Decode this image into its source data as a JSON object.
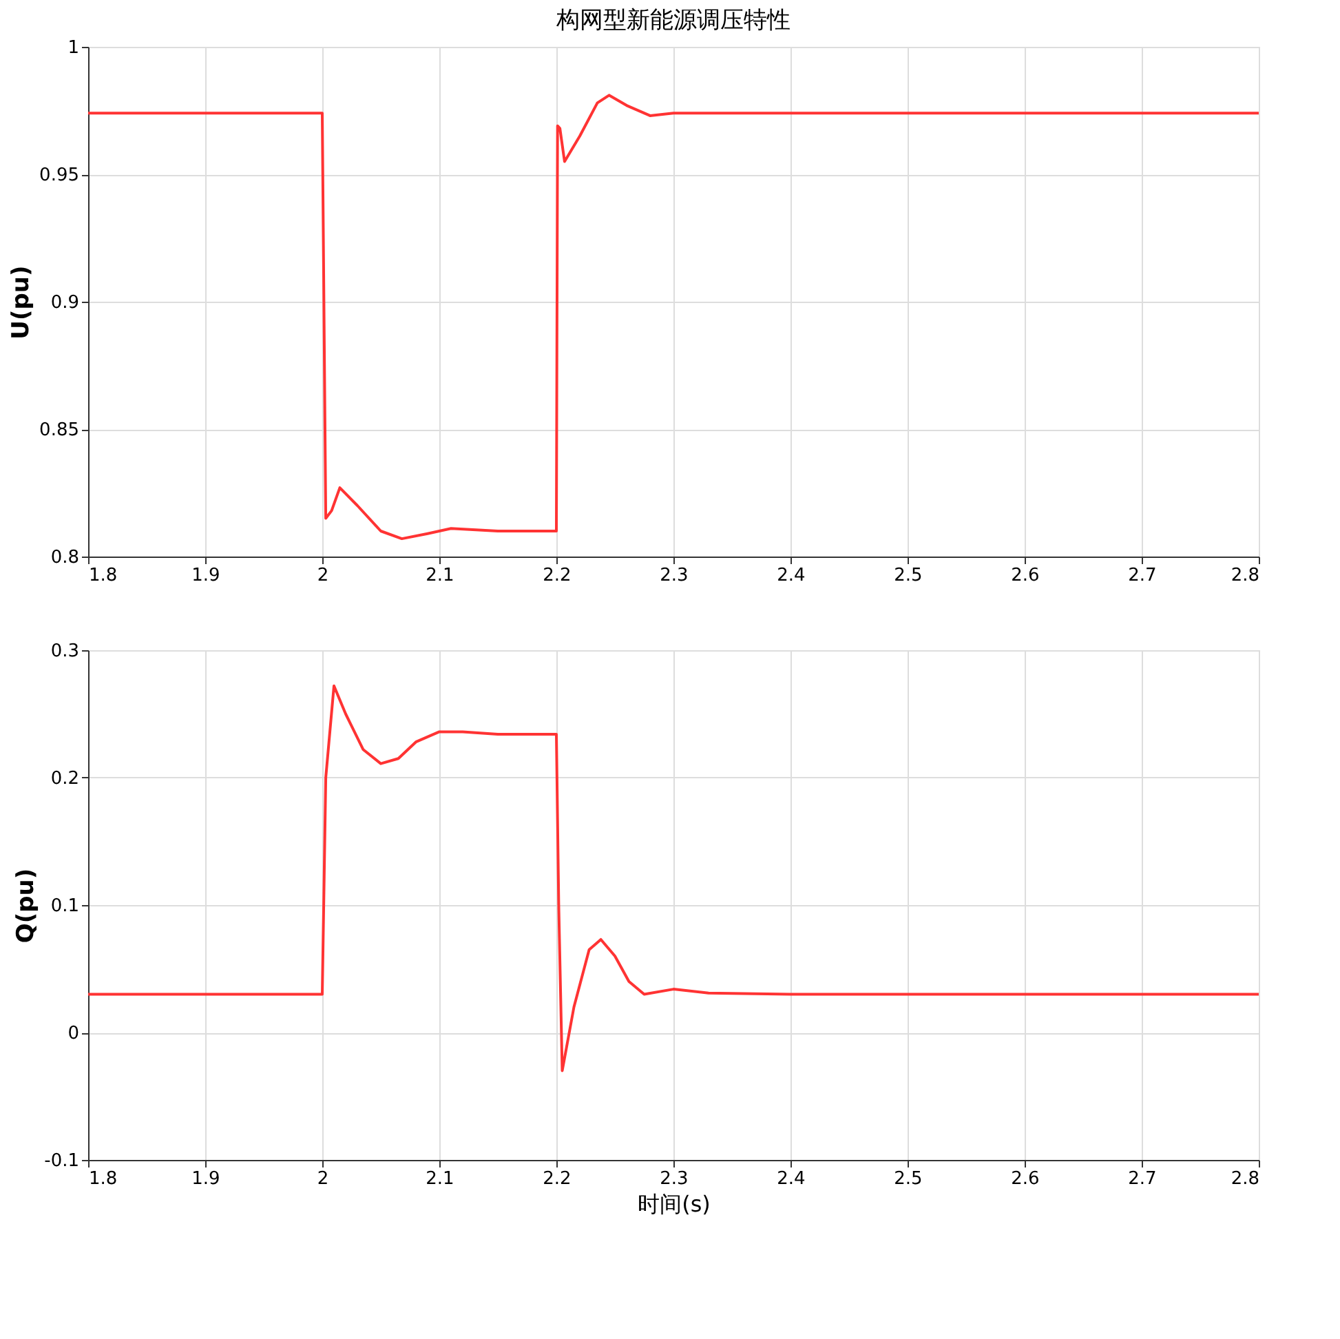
{
  "chart_data": [
    {
      "type": "line",
      "title": "构网型新能源调压特性",
      "ylabel": "U(pu)",
      "xlim": [
        1.8,
        2.8
      ],
      "xticks": [
        1.8,
        1.9,
        2,
        2.1,
        2.2,
        2.3,
        2.4,
        2.5,
        2.6,
        2.7,
        2.8
      ],
      "ylim": [
        0.8,
        1
      ],
      "yticks": [
        0.8,
        0.85,
        0.9,
        0.95,
        1
      ],
      "grid": true,
      "marker": "none",
      "line_style": "solid",
      "series": [
        {
          "color": "#ff3333",
          "x": [
            1.8,
            2.0,
            2.003,
            2.008,
            2.015,
            2.03,
            2.05,
            2.068,
            2.09,
            2.11,
            2.15,
            2.2,
            2.201,
            2.203,
            2.207,
            2.22,
            2.235,
            2.245,
            2.26,
            2.28,
            2.3,
            2.4,
            2.8
          ],
          "values": [
            0.974,
            0.974,
            0.815,
            0.818,
            0.827,
            0.82,
            0.81,
            0.807,
            0.809,
            0.811,
            0.81,
            0.81,
            0.969,
            0.968,
            0.955,
            0.965,
            0.978,
            0.981,
            0.977,
            0.973,
            0.974,
            0.974,
            0.974
          ]
        }
      ]
    },
    {
      "type": "line",
      "xlabel": "时间(s)",
      "ylabel": "Q(pu)",
      "xlim": [
        1.8,
        2.8
      ],
      "xticks": [
        1.8,
        1.9,
        2,
        2.1,
        2.2,
        2.3,
        2.4,
        2.5,
        2.6,
        2.7,
        2.8
      ],
      "ylim": [
        -0.1,
        0.3
      ],
      "yticks": [
        -0.1,
        0,
        0.1,
        0.2,
        0.3
      ],
      "grid": true,
      "marker": "none",
      "line_style": "solid",
      "series": [
        {
          "color": "#ff3333",
          "x": [
            1.8,
            2.0,
            2.003,
            2.01,
            2.02,
            2.035,
            2.05,
            2.065,
            2.08,
            2.1,
            2.12,
            2.15,
            2.2,
            2.202,
            2.205,
            2.215,
            2.228,
            2.238,
            2.25,
            2.262,
            2.275,
            2.3,
            2.33,
            2.4,
            2.8
          ],
          "values": [
            0.03,
            0.03,
            0.2,
            0.272,
            0.25,
            0.222,
            0.211,
            0.215,
            0.228,
            0.236,
            0.236,
            0.234,
            0.234,
            0.1,
            -0.03,
            0.02,
            0.065,
            0.073,
            0.06,
            0.04,
            0.03,
            0.034,
            0.031,
            0.03,
            0.03
          ]
        }
      ]
    }
  ]
}
